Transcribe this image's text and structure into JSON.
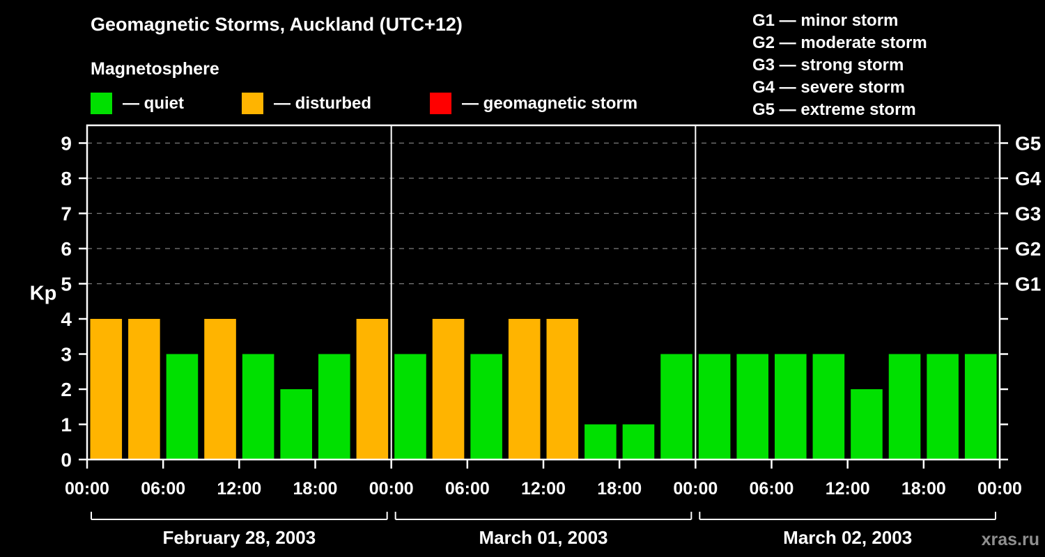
{
  "title": "Geomagnetic Storms, Auckland (UTC+12)",
  "subtitle": "Magnetosphere",
  "legend": {
    "quiet": "— quiet",
    "disturbed": "— disturbed",
    "storm": "— geomagnetic storm"
  },
  "g_legend": [
    "G1 — minor storm",
    "G2 — moderate storm",
    "G3 — strong storm",
    "G4 — severe storm",
    "G5 — extreme storm"
  ],
  "watermark": "xras.ru",
  "chart_data": {
    "type": "bar",
    "title": "Geomagnetic Storms, Auckland (UTC+12)",
    "ylabel": "Kp",
    "ylim": [
      0,
      9.5
    ],
    "y_ticks": [
      0,
      1,
      2,
      3,
      4,
      5,
      6,
      7,
      8,
      9
    ],
    "grid_levels": [
      5,
      6,
      7,
      8,
      9
    ],
    "right_axis": [
      {
        "kp": 9,
        "label": "G5"
      },
      {
        "kp": 8,
        "label": "G4"
      },
      {
        "kp": 7,
        "label": "G3"
      },
      {
        "kp": 6,
        "label": "G2"
      },
      {
        "kp": 5,
        "label": "G1"
      }
    ],
    "x_tick_labels": [
      "00:00",
      "06:00",
      "12:00",
      "18:00",
      "00:00",
      "06:00",
      "12:00",
      "18:00",
      "00:00",
      "06:00",
      "12:00",
      "18:00",
      "00:00"
    ],
    "hours_per_bar": 3,
    "days": [
      {
        "date": "February 28, 2003",
        "values": [
          4,
          4,
          3,
          4,
          3,
          2,
          3,
          4
        ]
      },
      {
        "date": "March 01, 2003",
        "values": [
          3,
          4,
          3,
          4,
          4,
          1,
          1,
          3
        ]
      },
      {
        "date": "March 02, 2003",
        "values": [
          3,
          3,
          3,
          3,
          2,
          3,
          3,
          3
        ]
      }
    ],
    "color_rule": {
      "quiet_max_kp": 3,
      "disturbed_max_kp": 4
    },
    "colors": {
      "quiet": "#00e000",
      "disturbed": "#ffb400",
      "storm": "#ff0000"
    },
    "grid_color": "#7d7d7d",
    "axis_color": "#ffffff",
    "background": "#000000"
  }
}
